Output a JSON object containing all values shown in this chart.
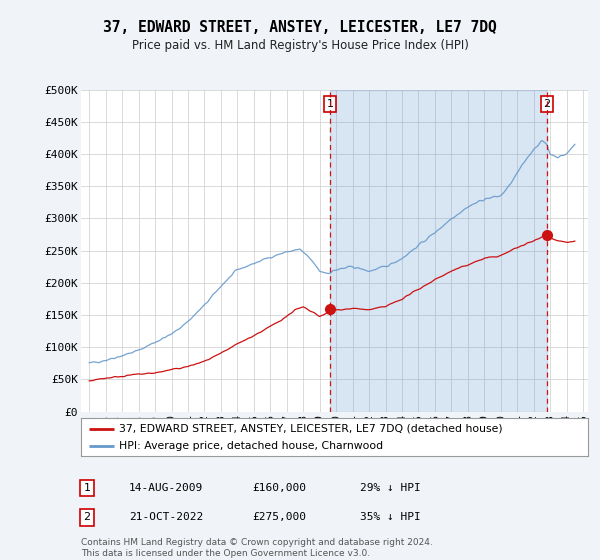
{
  "title": "37, EDWARD STREET, ANSTEY, LEICESTER, LE7 7DQ",
  "subtitle": "Price paid vs. HM Land Registry's House Price Index (HPI)",
  "background_color": "#f0f4f8",
  "plot_bg_color": "#ffffff",
  "shade_color": "#ddeeff",
  "ylim": [
    0,
    500000
  ],
  "yticks": [
    0,
    50000,
    100000,
    150000,
    200000,
    250000,
    300000,
    350000,
    400000,
    450000,
    500000
  ],
  "ytick_labels": [
    "£0",
    "£50K",
    "£100K",
    "£150K",
    "£200K",
    "£250K",
    "£300K",
    "£350K",
    "£400K",
    "£450K",
    "£500K"
  ],
  "hpi_color": "#6699cc",
  "price_color": "#cc1111",
  "vline_color": "#cc0000",
  "marker1_year": 2009.62,
  "marker1_value": 160000,
  "marker2_year": 2022.8,
  "marker2_value": 275000,
  "legend_line1": "37, EDWARD STREET, ANSTEY, LEICESTER, LE7 7DQ (detached house)",
  "legend_line2": "HPI: Average price, detached house, Charnwood",
  "annotation1_date": "14-AUG-2009",
  "annotation1_price": "£160,000",
  "annotation1_hpi": "29% ↓ HPI",
  "annotation2_date": "21-OCT-2022",
  "annotation2_price": "£275,000",
  "annotation2_hpi": "35% ↓ HPI",
  "footer": "Contains HM Land Registry data © Crown copyright and database right 2024.\nThis data is licensed under the Open Government Licence v3.0.",
  "hpi_anchors_x": [
    1995.0,
    1996.0,
    1997.0,
    1998.0,
    1999.0,
    2000.0,
    2001.0,
    2002.0,
    2003.0,
    2004.0,
    2005.0,
    2006.0,
    2007.0,
    2007.8,
    2008.5,
    2009.0,
    2009.5,
    2010.0,
    2011.0,
    2012.0,
    2013.0,
    2014.0,
    2015.0,
    2016.0,
    2017.0,
    2018.0,
    2019.0,
    2020.0,
    2020.5,
    2021.0,
    2021.5,
    2022.0,
    2022.5,
    2022.8,
    2023.0,
    2023.5,
    2024.0,
    2024.5
  ],
  "hpi_anchors_y": [
    75000,
    80000,
    87000,
    95000,
    108000,
    120000,
    140000,
    165000,
    195000,
    220000,
    230000,
    240000,
    248000,
    252000,
    235000,
    218000,
    215000,
    220000,
    225000,
    218000,
    225000,
    238000,
    258000,
    278000,
    300000,
    318000,
    330000,
    335000,
    350000,
    370000,
    390000,
    408000,
    420000,
    415000,
    400000,
    395000,
    400000,
    415000
  ],
  "price_anchors_x": [
    1995.0,
    1996.0,
    1997.0,
    1998.0,
    1999.0,
    2000.0,
    2001.0,
    2002.0,
    2003.0,
    2004.0,
    2005.0,
    2006.0,
    2007.0,
    2007.5,
    2008.0,
    2008.5,
    2009.0,
    2009.4,
    2009.62,
    2010.0,
    2011.0,
    2012.0,
    2013.0,
    2014.0,
    2015.0,
    2016.0,
    2017.0,
    2018.0,
    2019.0,
    2020.0,
    2021.0,
    2022.0,
    2022.5,
    2022.8,
    2023.0,
    2023.5,
    2024.0,
    2024.5
  ],
  "price_anchors_y": [
    48000,
    52000,
    55000,
    58000,
    60000,
    65000,
    70000,
    78000,
    90000,
    105000,
    118000,
    132000,
    148000,
    158000,
    162000,
    155000,
    148000,
    152000,
    160000,
    158000,
    160000,
    158000,
    163000,
    175000,
    190000,
    205000,
    218000,
    228000,
    238000,
    242000,
    255000,
    265000,
    272000,
    275000,
    270000,
    265000,
    262000,
    265000
  ]
}
